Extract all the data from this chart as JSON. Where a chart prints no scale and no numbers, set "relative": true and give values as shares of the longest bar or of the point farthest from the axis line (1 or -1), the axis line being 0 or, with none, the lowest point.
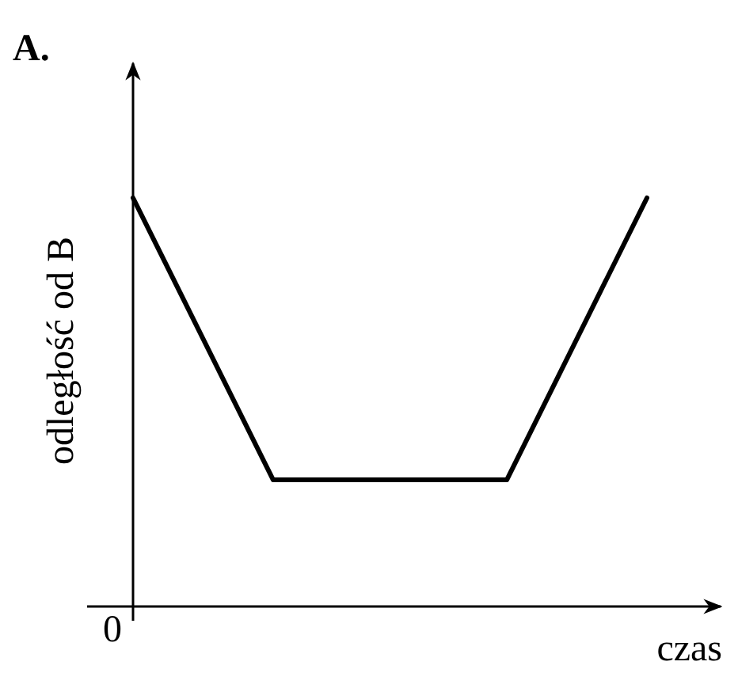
{
  "chart_data": {
    "type": "line",
    "title": "A.",
    "xlabel": "czas",
    "ylabel": "odległość od B",
    "annotations": [
      "0"
    ],
    "relative": true,
    "categories": [
      null,
      null,
      null,
      null,
      null,
      null,
      null,
      null,
      null,
      null,
      null,
      null
    ],
    "series": [
      {
        "color": "#000000",
        "values": [
          1,
          0.77,
          0.54,
          0.31,
          0.31,
          0.31,
          0.31,
          0.31,
          0.31,
          0.54,
          0.77,
          1
        ]
      }
    ],
    "marker": "none",
    "line_style": "solid"
  }
}
